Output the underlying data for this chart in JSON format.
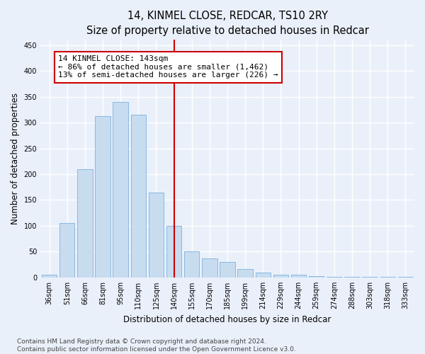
{
  "title": "14, KINMEL CLOSE, REDCAR, TS10 2RY",
  "subtitle": "Size of property relative to detached houses in Redcar",
  "xlabel": "Distribution of detached houses by size in Redcar",
  "ylabel": "Number of detached properties",
  "categories": [
    "36sqm",
    "51sqm",
    "66sqm",
    "81sqm",
    "95sqm",
    "110sqm",
    "125sqm",
    "140sqm",
    "155sqm",
    "170sqm",
    "185sqm",
    "199sqm",
    "214sqm",
    "229sqm",
    "244sqm",
    "259sqm",
    "274sqm",
    "288sqm",
    "303sqm",
    "318sqm",
    "333sqm"
  ],
  "values": [
    6,
    105,
    210,
    313,
    340,
    315,
    165,
    100,
    50,
    37,
    30,
    17,
    10,
    5,
    5,
    2,
    1,
    1,
    1,
    1,
    1
  ],
  "bar_color": "#c8dcf0",
  "bar_edge_color": "#88b8e0",
  "vline_x_index": 7,
  "vline_color": "#cc0000",
  "annotation_line1": "14 KINMEL CLOSE: 143sqm",
  "annotation_line2": "← 86% of detached houses are smaller (1,462)",
  "annotation_line3": "13% of semi-detached houses are larger (226) →",
  "annotation_box_color": "#ffffff",
  "annotation_box_edge_color": "#cc0000",
  "ylim": [
    0,
    460
  ],
  "yticks": [
    0,
    50,
    100,
    150,
    200,
    250,
    300,
    350,
    400,
    450
  ],
  "bg_color": "#eaf0fa",
  "plot_bg_color": "#eaf0fa",
  "grid_color": "#ffffff",
  "footer1": "Contains HM Land Registry data © Crown copyright and database right 2024.",
  "footer2": "Contains public sector information licensed under the Open Government Licence v3.0.",
  "title_fontsize": 10.5,
  "subtitle_fontsize": 9.5,
  "xlabel_fontsize": 8.5,
  "ylabel_fontsize": 8.5,
  "tick_fontsize": 7,
  "annotation_fontsize": 8,
  "footer_fontsize": 6.5
}
